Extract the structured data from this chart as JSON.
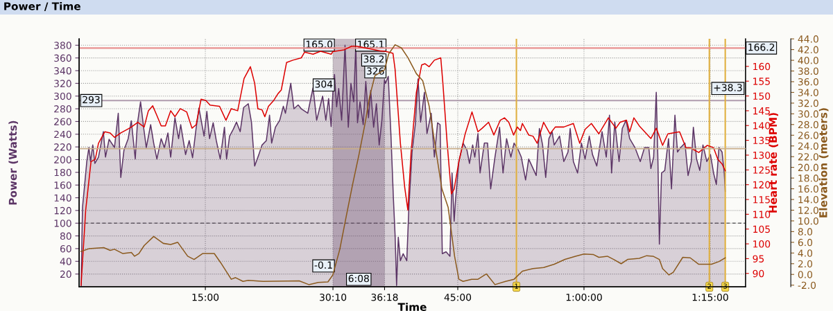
{
  "chart_data": {
    "type": "area",
    "title": "Power / Time",
    "xlabel": "Time",
    "ylabel": "Power (Watts)",
    "y2label": "Heart rate (BPM)",
    "y3label": "Elevation (meters)",
    "xlim": [
      0,
      79.2
    ],
    "ylim": [
      0,
      390
    ],
    "y2lim": [
      85.5,
      169.3
    ],
    "y3lim": [
      -2.3,
      44.0
    ],
    "xticks": [
      {
        "value": 15,
        "label": "15:00"
      },
      {
        "value": 30.1667,
        "label": "30:10"
      },
      {
        "value": 36.3,
        "label": "36:18"
      },
      {
        "value": 45,
        "label": "45:00"
      },
      {
        "value": 60,
        "label": "1:00:00"
      },
      {
        "value": 75,
        "label": "1:15:00"
      }
    ],
    "yticks": [
      20,
      40,
      60,
      80,
      100,
      120,
      140,
      160,
      180,
      200,
      220,
      240,
      260,
      280,
      300,
      320,
      340,
      360,
      380
    ],
    "y2ticks": [
      90,
      95,
      100,
      105,
      110,
      115,
      120,
      125,
      130,
      135,
      140,
      145,
      150,
      155,
      160
    ],
    "y3ticks": [
      {
        "value": -2,
        "label": "-2.0"
      },
      {
        "value": 0,
        "label": "0.0"
      },
      {
        "value": 2,
        "label": "2.0"
      },
      {
        "value": 4,
        "label": "4.0"
      },
      {
        "value": 6,
        "label": "6.0"
      },
      {
        "value": 8,
        "label": "8.0"
      },
      {
        "value": 10,
        "label": "10.0"
      },
      {
        "value": 12,
        "label": "12.0"
      },
      {
        "value": 14,
        "label": "14.0"
      },
      {
        "value": 16,
        "label": "16.0"
      },
      {
        "value": 18,
        "label": "18.0"
      },
      {
        "value": 20,
        "label": "20.0"
      },
      {
        "value": 22,
        "label": "22.0"
      },
      {
        "value": 24,
        "label": "24.0"
      },
      {
        "value": 26,
        "label": "26.0"
      },
      {
        "value": 28,
        "label": "28.0"
      },
      {
        "value": 30,
        "label": "30.0"
      },
      {
        "value": 32,
        "label": "32.0"
      },
      {
        "value": 34,
        "label": "34.0"
      },
      {
        "value": 36,
        "label": "36.0"
      },
      {
        "value": 38,
        "label": "38.0"
      },
      {
        "value": 40,
        "label": "40.0"
      },
      {
        "value": 42,
        "label": "42.0"
      },
      {
        "value": 44,
        "label": "44.0"
      }
    ],
    "grid": true,
    "legend": false,
    "marker": "none",
    "line_style": "solid",
    "series": [
      {
        "color": "#5c3566",
        "x": [
          0.23,
          0.4,
          0.66,
          0.91,
          1.16,
          1.36,
          1.62,
          1.87,
          2.3,
          2.88,
          3.13,
          3.56,
          4.2,
          4.65,
          4.95,
          5.33,
          5.83,
          6.2,
          6.67,
          6.92,
          7.3,
          7.68,
          7.98,
          8.5,
          8.86,
          9.24,
          9.75,
          10.13,
          10.55,
          10.88,
          11.39,
          11.82,
          12.07,
          12.65,
          13.08,
          13.48,
          13.9,
          14.24,
          14.85,
          15.18,
          15.5,
          15.93,
          16.3,
          16.77,
          17.27,
          17.52,
          17.88,
          18.33,
          18.7,
          19.14,
          19.55,
          20.1,
          20.48,
          20.86,
          21.36,
          21.74,
          22.25,
          22.63,
          22.88,
          23.33,
          23.84,
          24.27,
          24.52,
          25.15,
          25.53,
          26.03,
          26.4,
          27.17,
          27.8,
          28.23,
          28.94,
          29.32,
          29.65,
          29.95,
          30.15,
          30.35,
          30.6,
          30.85,
          31.2,
          31.6,
          31.99,
          32.3,
          32.63,
          32.88,
          33.08,
          33.38,
          33.76,
          34.07,
          34.39,
          34.65,
          35.0,
          35.33,
          35.66,
          35.98,
          36.29,
          36.41,
          36.74,
          37.05,
          37.35,
          37.55,
          37.73,
          37.93,
          38.18,
          38.51,
          38.94,
          39.19,
          39.57,
          39.95,
          40.28,
          40.58,
          41.04,
          41.34,
          41.84,
          42.22,
          42.6,
          42.9,
          43.16,
          43.61,
          44.07,
          44.32,
          44.57,
          44.75,
          45.13,
          45.63,
          46.09,
          46.39,
          46.77,
          47.02,
          47.4,
          47.65,
          48.16,
          48.54,
          48.91,
          49.42,
          49.97,
          50.38,
          50.8,
          51.31,
          51.69,
          52.2,
          52.55,
          53.06,
          53.43,
          53.81,
          54.32,
          54.7,
          55.08,
          55.45,
          55.83,
          56.21,
          56.46,
          57.1,
          57.6,
          58.1,
          58.36,
          58.74,
          59.24,
          59.7,
          60.13,
          60.63,
          61.01,
          61.52,
          62.15,
          62.65,
          63.03,
          63.28,
          63.66,
          64.17,
          64.55,
          65.0,
          65.43,
          66.06,
          66.69,
          67.2,
          67.7,
          67.95,
          68.28,
          68.59,
          68.79,
          68.96,
          69.22,
          69.6,
          70.05,
          70.4,
          70.81,
          71.11,
          71.49,
          72.0,
          72.37,
          72.75,
          73.0,
          73.38,
          73.76,
          74.14,
          74.6,
          75.03,
          75.4,
          75.73,
          76.04,
          76.41,
          76.67,
          76.79
        ],
        "values": [
          2,
          125,
          161,
          197,
          219,
          197,
          223,
          194,
          204,
          244,
          204,
          232,
          219,
          273,
          172,
          215,
          233,
          261,
          201,
          256,
          291,
          249,
          219,
          255,
          226,
          201,
          233,
          219,
          242,
          204,
          266,
          233,
          255,
          208,
          230,
          203,
          249,
          281,
          237,
          276,
          233,
          258,
          230,
          201,
          251,
          201,
          237,
          248,
          259,
          244,
          282,
          288,
          259,
          190,
          208,
          223,
          230,
          270,
          226,
          251,
          262,
          284,
          273,
          320,
          280,
          286,
          280,
          273,
          313,
          262,
          300,
          262,
          296,
          252,
          304,
          334,
          283,
          312,
          262,
          380,
          251,
          320,
          291,
          380,
          258,
          291,
          255,
          323,
          266,
          309,
          251,
          288,
          223,
          262,
          326,
          320,
          331,
          241,
          139,
          81,
          2,
          78,
          41,
          52,
          41,
          125,
          212,
          255,
          327,
          259,
          306,
          241,
          273,
          204,
          258,
          255,
          52,
          55,
          48,
          179,
          103,
          139,
          197,
          226,
          215,
          194,
          223,
          204,
          241,
          179,
          226,
          226,
          154,
          204,
          251,
          179,
          233,
          204,
          226,
          215,
          204,
          168,
          201,
          190,
          175,
          249,
          223,
          172,
          233,
          244,
          223,
          237,
          197,
          212,
          249,
          197,
          179,
          226,
          201,
          237,
          208,
          190,
          244,
          204,
          270,
          179,
          259,
          197,
          249,
          262,
          233,
          219,
          197,
          219,
          219,
          186,
          204,
          306,
          197,
          67,
          179,
          183,
          233,
          154,
          270,
          212,
          219,
          226,
          175,
          197,
          251,
          201,
          183,
          223,
          197,
          208,
          179,
          161,
          219,
          212,
          179,
          150
        ]
      },
      {
        "type": "line",
        "axis": "y2",
        "color": "#dd0000",
        "x": [
          0.23,
          0.78,
          1.41,
          1.92,
          2.3,
          3.06,
          3.69,
          4.2,
          4.95,
          5.71,
          6.21,
          6.97,
          7.73,
          8.23,
          8.74,
          9.24,
          9.75,
          10.25,
          10.88,
          11.39,
          12.02,
          12.78,
          13.41,
          13.91,
          14.49,
          15.05,
          15.56,
          16.69,
          17.45,
          18.08,
          18.84,
          19.6,
          20.35,
          20.86,
          21.24,
          21.74,
          22.07,
          22.5,
          23.13,
          23.64,
          24.02,
          24.65,
          25.4,
          26.41,
          26.79,
          27.8,
          28.69,
          29.95,
          30.15,
          31.49,
          32.37,
          33.0,
          35.9,
          36.29,
          36.8,
          37.3,
          37.55,
          38.18,
          38.69,
          39.07,
          39.45,
          40.08,
          40.71,
          41.09,
          41.6,
          42.22,
          42.98,
          43.23,
          43.74,
          44.24,
          44.57,
          45.13,
          45.88,
          46.69,
          47.4,
          47.9,
          48.66,
          49.29,
          50.05,
          50.55,
          51.06,
          51.64,
          52.07,
          52.45,
          52.68,
          53.43,
          53.94,
          54.44,
          55.2,
          55.96,
          56.59,
          57.6,
          58.74,
          59.49,
          60.13,
          60.88,
          61.77,
          62.9,
          63.79,
          64.29,
          65.05,
          65.43,
          65.93,
          66.57,
          67.95,
          68.59,
          69.34,
          69.97,
          71.36,
          72.12,
          72.63,
          73.64,
          74.65,
          75.4,
          75.91,
          76.41,
          76.79
        ],
        "values": [
          86,
          111.4,
          127.8,
          128.6,
          134.0,
          137.9,
          137.5,
          136.0,
          137.5,
          138.7,
          139.5,
          141.1,
          139.5,
          145.0,
          146.7,
          143.4,
          139.9,
          139.9,
          145.0,
          143.0,
          145.7,
          144.6,
          139.1,
          140.3,
          148.9,
          148.5,
          146.9,
          146.5,
          141.8,
          145.7,
          145.0,
          155.9,
          159.9,
          154.3,
          145.7,
          145.3,
          143.0,
          146.5,
          148.5,
          150.8,
          152.0,
          161.3,
          162.1,
          162.9,
          164.8,
          164.1,
          165.1,
          164.1,
          165.0,
          165.6,
          166.8,
          166.8,
          165.2,
          165.1,
          164.8,
          164.4,
          159.0,
          134.0,
          119.2,
          111.4,
          130.9,
          151.2,
          160.5,
          160.9,
          159.9,
          162.1,
          162.9,
          154.3,
          134.0,
          116.9,
          118.5,
          127.8,
          137.2,
          144.6,
          137.9,
          139.1,
          141.1,
          136.8,
          141.8,
          142.6,
          141.1,
          136.8,
          139.5,
          138.3,
          140.7,
          136.8,
          136.4,
          134.0,
          141.1,
          137.2,
          139.5,
          139.5,
          140.7,
          134.0,
          138.7,
          140.7,
          137.2,
          142.6,
          139.1,
          141.1,
          141.8,
          137.9,
          142.6,
          139.9,
          135.6,
          139.1,
          133.3,
          137.2,
          137.9,
          132.5,
          132.5,
          130.9,
          133.3,
          132.5,
          128.6,
          127.0,
          124.7
        ]
      },
      {
        "type": "line",
        "axis": "y3",
        "color": "#8b5a1e",
        "x": [
          0.23,
          1.16,
          2.93,
          3.69,
          4.2,
          5.2,
          6.21,
          6.59,
          7.1,
          7.73,
          8.86,
          10.0,
          10.88,
          11.72,
          12.9,
          13.66,
          14.67,
          16.06,
          16.82,
          18.08,
          18.59,
          19.47,
          20.1,
          21.87,
          26.16,
          27.3,
          28.43,
          29.57,
          30.15,
          30.98,
          31.74,
          32.5,
          33.26,
          34.02,
          34.52,
          35.15,
          36.29,
          36.79,
          37.55,
          38.31,
          39.07,
          40.08,
          40.83,
          41.59,
          42.35,
          43.11,
          43.86,
          44.62,
          45.13,
          45.63,
          46.64,
          47.4,
          48.41,
          49.42,
          50.68,
          51.69,
          52.68,
          53.94,
          55.2,
          56.46,
          57.73,
          58.99,
          60.0,
          61.14,
          61.77,
          62.78,
          63.54,
          64.42,
          65.18,
          66.57,
          67.45,
          68.21,
          68.96,
          69.34,
          70.1,
          70.61,
          71.74,
          72.63,
          73.64,
          75.15,
          76.04,
          76.79
        ],
        "values": [
          4.3,
          4.8,
          5.0,
          4.5,
          4.7,
          3.9,
          4.1,
          3.4,
          3.9,
          5.4,
          7.1,
          5.8,
          5.6,
          6.0,
          3.4,
          2.8,
          3.9,
          3.9,
          2.2,
          -0.9,
          -0.6,
          -1.3,
          -1.1,
          -1.3,
          -1.2,
          -1.9,
          -1.5,
          -1.4,
          -0.1,
          4.7,
          10.8,
          16.8,
          22.4,
          28.5,
          33.2,
          37.1,
          38.2,
          41.2,
          42.9,
          42.3,
          40.5,
          37.5,
          36.2,
          31.5,
          23.7,
          16.0,
          12.5,
          3.4,
          -0.9,
          -1.3,
          -0.9,
          -0.9,
          0.1,
          -1.9,
          -1.3,
          -0.9,
          0.6,
          1.1,
          1.3,
          1.9,
          2.8,
          3.4,
          3.8,
          3.7,
          3.2,
          3.4,
          2.8,
          2.0,
          2.8,
          3.0,
          3.5,
          3.4,
          2.8,
          1.1,
          -0.1,
          0.4,
          3.2,
          3.1,
          1.9,
          1.9,
          2.4,
          3.1
        ]
      }
    ],
    "ref_lines": [
      {
        "axis": "y",
        "value": 293,
        "label": "293",
        "color": "#b8a6b6",
        "line_style": "solid"
      },
      {
        "axis": "y",
        "value": 100,
        "color": "#555555",
        "line_style": "dashed"
      },
      {
        "axis": "y2",
        "value": 166.2,
        "label": "166.2",
        "color": "#e89090",
        "line_style": "solid"
      },
      {
        "axis": "y3",
        "value": 23.5,
        "color": "#c8ad8a",
        "line_style": "solid"
      },
      {
        "axis": "x",
        "value": 51.97,
        "color": "#e0b040",
        "line_style": "solid"
      },
      {
        "axis": "x",
        "value": 74.9,
        "color": "#e0b040",
        "line_style": "solid"
      },
      {
        "axis": "x",
        "value": 76.79,
        "color": "#e0b040",
        "line_style": "solid"
      }
    ],
    "bands": [
      {
        "axis": "x",
        "from": 30.1667,
        "to": 36.3,
        "label": "6:08",
        "color": "#6e4d6c"
      }
    ],
    "annotations": [
      "165.0",
      "165.1",
      "304",
      "326",
      "38.2",
      "-0.1",
      "+38.3",
      {
        "text": "1",
        "x": 51.97,
        "y": 0
      },
      {
        "text": "2",
        "x": 74.9,
        "y": 0
      },
      {
        "text": "3",
        "x": 76.79,
        "y": 0
      }
    ]
  }
}
